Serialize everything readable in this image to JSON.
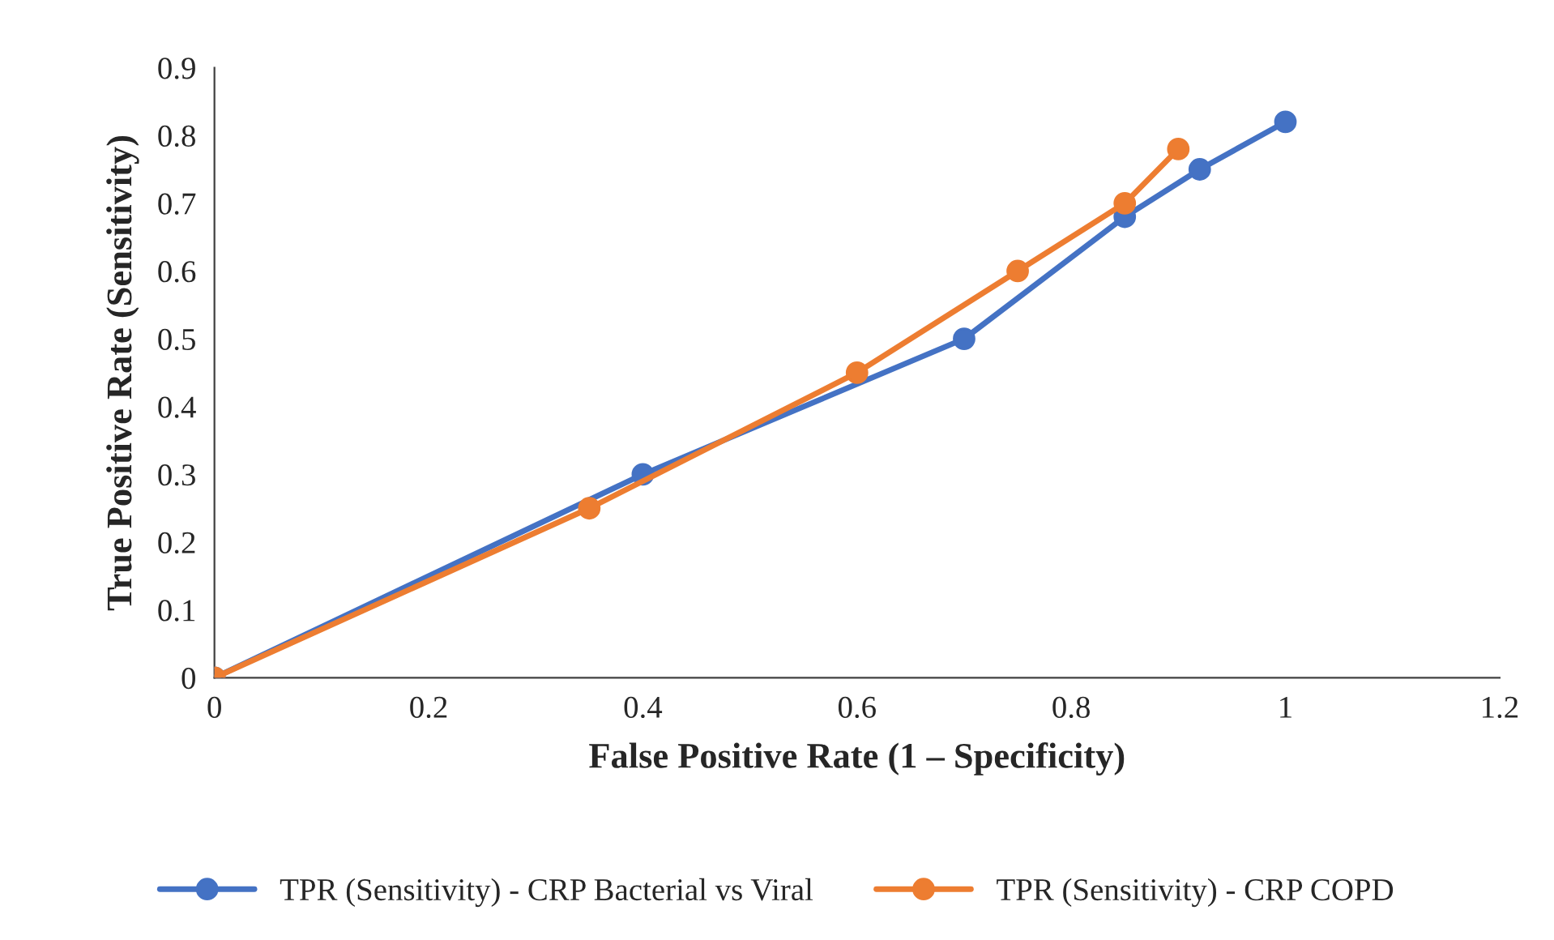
{
  "chart_data": {
    "type": "line",
    "xlabel": "False Positive Rate (1 – Specificity)",
    "ylabel": "True Positive Rate (Sensitivity)",
    "xlim": [
      0,
      1.2
    ],
    "xticks": [
      0,
      0.2,
      0.4,
      0.6,
      0.8,
      1,
      1.2
    ],
    "ylim": [
      0,
      0.9
    ],
    "yticks": [
      0,
      0.1,
      0.2,
      0.3,
      0.4,
      0.5,
      0.6,
      0.7,
      0.8,
      0.9
    ],
    "grid": false,
    "legend": "bottom",
    "marker": "circle",
    "line_style": "solid",
    "series": [
      {
        "name": "TPR (Sensitivity) - CRP Bacterial vs Viral",
        "color": "#4472c4",
        "x": [
          0,
          0.4,
          0.7,
          0.85,
          0.92,
          1
        ],
        "values": [
          0,
          0.3,
          0.5,
          0.68,
          0.75,
          0.82
        ]
      },
      {
        "name": "TPR (Sensitivity) - CRP COPD",
        "color": "#ed7d31",
        "x": [
          0,
          0.35,
          0.6,
          0.75,
          0.85,
          0.9
        ],
        "values": [
          0,
          0.25,
          0.45,
          0.6,
          0.7,
          0.78
        ]
      }
    ]
  }
}
